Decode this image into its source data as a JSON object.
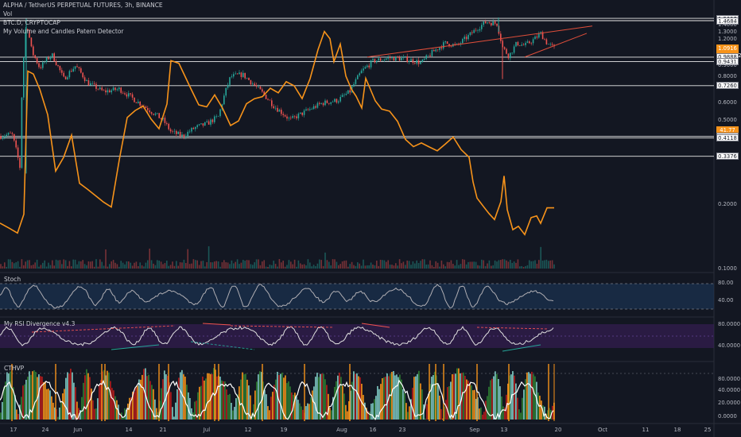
{
  "header": {
    "symbol_line": "ALPHA / TetherUS PERPETUAL FUTURES, 3h, BINANCE",
    "indicators": [
      "Vol",
      "BTC.D, CRYPTOCAP",
      "My Volume and Candles Patern Detector"
    ]
  },
  "price_axis": {
    "labels": [
      {
        "text": "1.5057",
        "y_value": 1.5057,
        "style": "box"
      },
      {
        "text": "1.4684",
        "y_value": 1.4684,
        "style": "box"
      },
      {
        "text": "1.4000",
        "y_value": 1.4,
        "style": "plain"
      },
      {
        "text": "1.3000",
        "y_value": 1.3,
        "style": "plain"
      },
      {
        "text": "1.2000",
        "y_value": 1.2,
        "style": "plain"
      },
      {
        "text": "1.0916",
        "y_value": 1.0916,
        "style": "orange"
      },
      {
        "text": "01:04:32",
        "y_value": 1.0916,
        "style": "orange-sub"
      },
      {
        "text": "0.9888",
        "y_value": 0.9888,
        "style": "box"
      },
      {
        "text": "0.9431",
        "y_value": 0.9431,
        "style": "box"
      },
      {
        "text": "0.9000",
        "y_value": 0.9,
        "style": "plain"
      },
      {
        "text": "0.8000",
        "y_value": 0.8,
        "style": "plain"
      },
      {
        "text": "0.7260",
        "y_value": 0.726,
        "style": "box"
      },
      {
        "text": "0.6000",
        "y_value": 0.6,
        "style": "plain"
      },
      {
        "text": "0.5000",
        "y_value": 0.5,
        "style": "plain"
      },
      {
        "text": "41.77",
        "y_value": 0.449,
        "style": "orange"
      },
      {
        "text": "0.4188",
        "y_value": 0.4188,
        "style": "box"
      },
      {
        "text": "0.4118",
        "y_value": 0.4118,
        "style": "box"
      },
      {
        "text": "0.3376",
        "y_value": 0.3376,
        "style": "box"
      },
      {
        "text": "0.2000",
        "y_value": 0.2,
        "style": "plain"
      },
      {
        "text": "0.1000",
        "y_value": 0.1,
        "style": "plain"
      }
    ]
  },
  "horizontal_levels": [
    1.5057,
    1.4684,
    0.9888,
    0.9431,
    0.726,
    0.4188,
    0.4118,
    0.3376
  ],
  "panes": {
    "stoch": {
      "label": "Stoch",
      "axis": [
        "80.00",
        "40.00"
      ]
    },
    "rsi": {
      "label": "My RSI Divergence v4.3",
      "axis": [
        "80.0000",
        "40.0000"
      ]
    },
    "cthvp": {
      "label": "CTHVP",
      "axis": [
        "80.0000",
        "40.0000",
        "20.0000",
        "0.0000"
      ]
    }
  },
  "time_axis": [
    {
      "text": "17",
      "x": 0
    },
    {
      "text": "24",
      "x": 1
    },
    {
      "text": "Jun",
      "x": 2
    },
    {
      "text": "14",
      "x": 3
    },
    {
      "text": "21",
      "x": 4
    },
    {
      "text": "Jul",
      "x": 5
    },
    {
      "text": "12",
      "x": 6
    },
    {
      "text": "19",
      "x": 7
    },
    {
      "text": "Aug",
      "x": 8
    },
    {
      "text": "16",
      "x": 9
    },
    {
      "text": "23",
      "x": 10
    },
    {
      "text": "Sep",
      "x": 11
    },
    {
      "text": "13",
      "x": 12
    },
    {
      "text": "20",
      "x": 13
    },
    {
      "text": "Oct",
      "x": 14
    },
    {
      "text": "11",
      "x": 15
    },
    {
      "text": "18",
      "x": 16
    },
    {
      "text": "25",
      "x": 17
    }
  ],
  "colors": {
    "background": "#131722",
    "up": "#26a69a",
    "down": "#ef5350",
    "btcd": "#f7931a",
    "trend": "#e04e3a",
    "stoch_band": "#1e3a5f",
    "rsi_band": "#3a1e5a",
    "cthvp_red": "#b71c1c",
    "cthvp_orange": "#f7931a",
    "cthvp_teal": "#80cbc4"
  }
}
